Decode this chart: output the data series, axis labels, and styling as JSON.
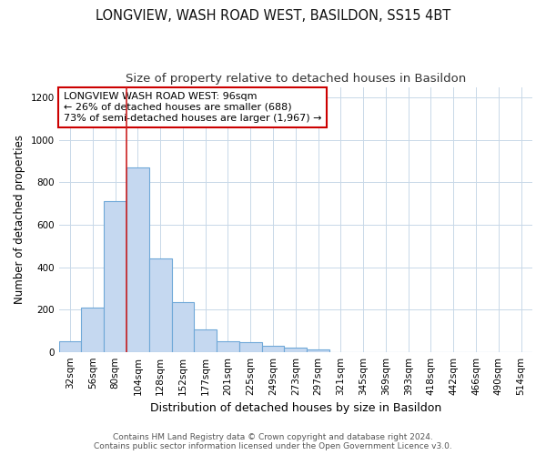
{
  "title": "LONGVIEW, WASH ROAD WEST, BASILDON, SS15 4BT",
  "subtitle": "Size of property relative to detached houses in Basildon",
  "xlabel": "Distribution of detached houses by size in Basildon",
  "ylabel": "Number of detached properties",
  "categories": [
    "32sqm",
    "56sqm",
    "80sqm",
    "104sqm",
    "128sqm",
    "152sqm",
    "177sqm",
    "201sqm",
    "225sqm",
    "249sqm",
    "273sqm",
    "297sqm",
    "321sqm",
    "345sqm",
    "369sqm",
    "393sqm",
    "418sqm",
    "442sqm",
    "466sqm",
    "490sqm",
    "514sqm"
  ],
  "values": [
    50,
    210,
    710,
    870,
    440,
    235,
    105,
    50,
    45,
    30,
    20,
    10,
    0,
    0,
    0,
    0,
    0,
    0,
    0,
    0,
    0
  ],
  "bar_color": "#c5d8f0",
  "bar_edge_color": "#6fa8d8",
  "background_color": "#ffffff",
  "grid_color": "#c8d8e8",
  "annotation_text": "LONGVIEW WASH ROAD WEST: 96sqm\n← 26% of detached houses are smaller (688)\n73% of semi-detached houses are larger (1,967) →",
  "annotation_box_color": "#cc0000",
  "red_line_x": 2.5,
  "ylim": [
    0,
    1250
  ],
  "yticks": [
    0,
    200,
    400,
    600,
    800,
    1000,
    1200
  ],
  "footer_text": "Contains HM Land Registry data © Crown copyright and database right 2024.\nContains public sector information licensed under the Open Government Licence v3.0.",
  "title_fontsize": 10.5,
  "subtitle_fontsize": 9.5,
  "xlabel_fontsize": 9,
  "ylabel_fontsize": 8.5,
  "tick_fontsize": 7.5,
  "annotation_fontsize": 8,
  "footer_fontsize": 6.5
}
